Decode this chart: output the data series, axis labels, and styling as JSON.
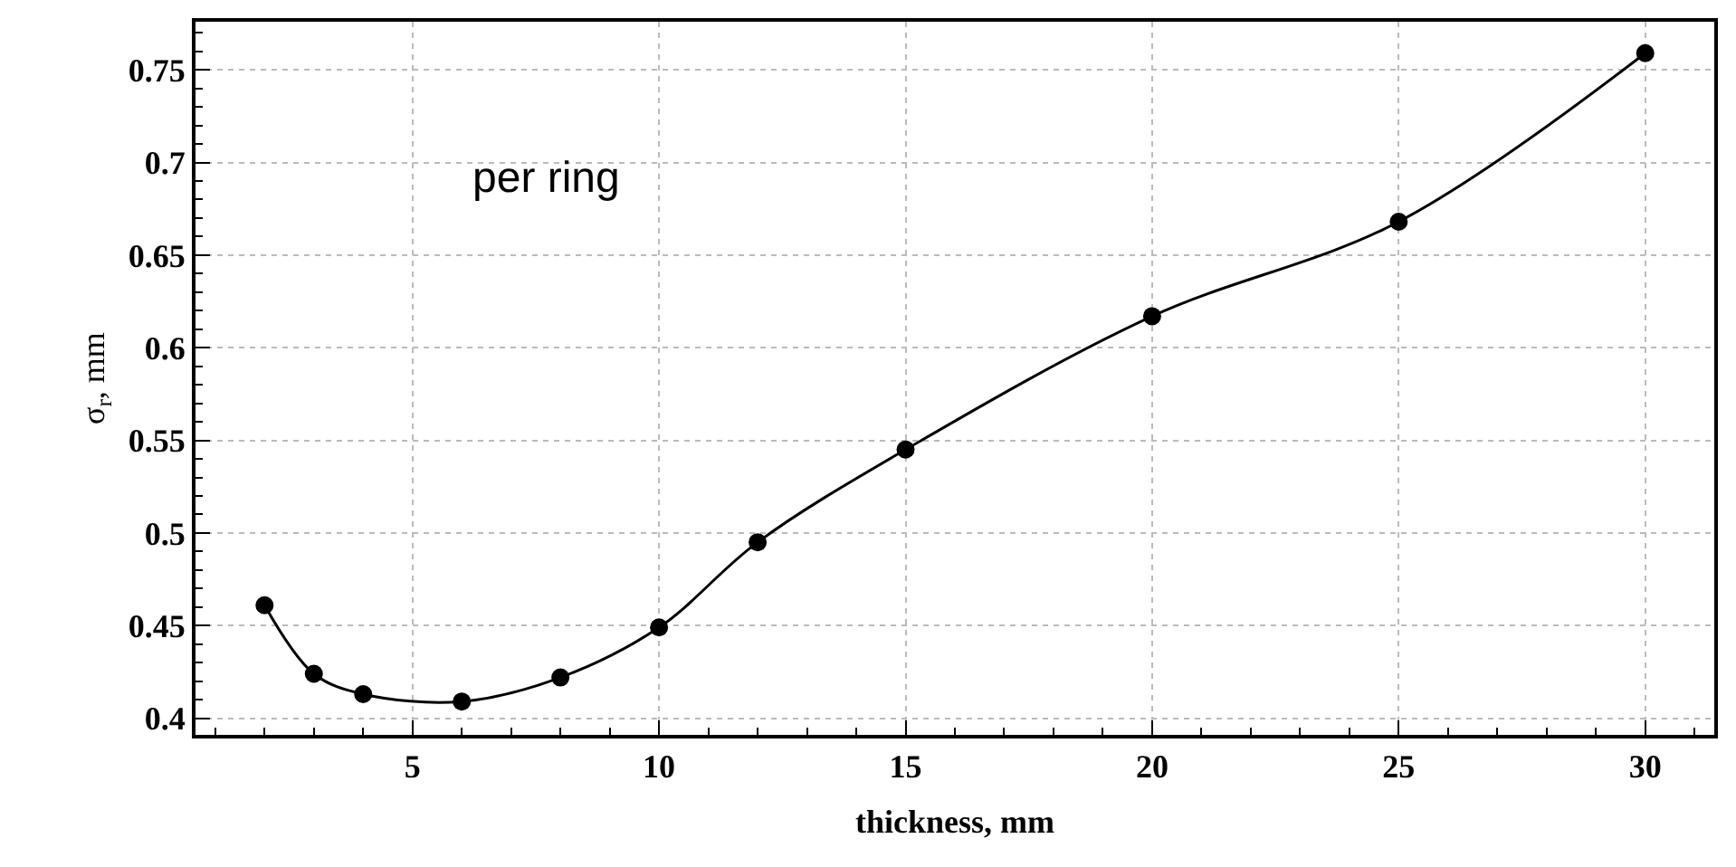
{
  "chart_data": {
    "type": "line",
    "xlabel": "thickness, mm",
    "ylabel": "σ$_{r}$, mm",
    "annotations": [
      "per ring"
    ],
    "x": [
      2,
      3,
      4,
      6,
      8,
      10,
      12,
      15,
      20,
      25,
      30
    ],
    "series": [
      {
        "color": "#000000",
        "values": [
          0.461,
          0.424,
          0.413,
          0.409,
          0.422,
          0.449,
          0.495,
          0.545,
          0.617,
          0.668,
          0.759
        ]
      }
    ],
    "xlim": [
      0.6,
      31.4
    ],
    "ylim": [
      0.391,
      0.776
    ],
    "xticks": [
      5,
      10,
      15,
      20,
      25,
      30
    ],
    "yticks": [
      0.4,
      0.45,
      0.5,
      0.55,
      0.6,
      0.65,
      0.7,
      0.75
    ],
    "grid": true,
    "marker": "circle",
    "line_style": "solid",
    "legend": false
  }
}
